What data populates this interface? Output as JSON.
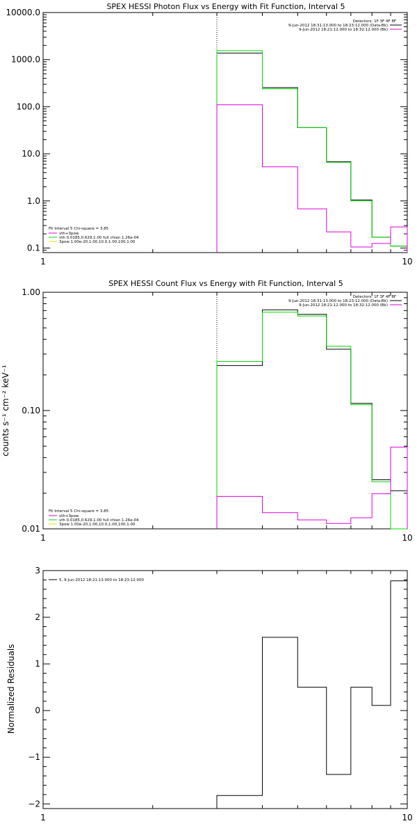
{
  "colors": {
    "background": "#ffffff",
    "axes": "#000000",
    "data": "#000000",
    "model_green": "#00dd00",
    "model_magenta": "#dd00dd"
  },
  "chart_data": [
    {
      "type": "line",
      "title": "SPEX HESSI Photon Flux vs Energy with Fit Function, Interval 5",
      "xlabel": "",
      "ylabel": "",
      "xscale": "log",
      "yscale": "log",
      "xlim": [
        1,
        10
      ],
      "ylim": [
        0.08,
        10000
      ],
      "x_ticks": [
        {
          "v": 1,
          "label": "1"
        },
        {
          "v": 10,
          "label": "10"
        }
      ],
      "y_ticks": [
        {
          "v": 0.1,
          "label": "0.1"
        },
        {
          "v": 1,
          "label": "1.0"
        },
        {
          "v": 10,
          "label": "10.0"
        },
        {
          "v": 100,
          "label": "100.0"
        },
        {
          "v": 1000,
          "label": "1000.0"
        },
        {
          "v": 10000,
          "label": "10000.0"
        }
      ],
      "vline_x": 3,
      "edges": [
        3,
        4,
        5,
        6,
        7,
        8,
        9,
        10
      ],
      "series": [
        {
          "role": "data",
          "color": "#000000",
          "values": [
            1380,
            255,
            36,
            6.8,
            1.05,
            0.17,
            0.11
          ]
        },
        {
          "role": "vth",
          "color": "#00dd00",
          "values": [
            1550,
            240,
            36,
            6.6,
            1.0,
            0.17,
            0.11
          ]
        },
        {
          "role": "bkg",
          "color": "#dd00dd",
          "values": [
            110,
            5.3,
            0.68,
            0.22,
            0.105,
            0.125,
            0.28
          ]
        }
      ],
      "legend_right": {
        "header": "Detectors: 1F 3F 4F 8F",
        "lines": [
          {
            "text": "9-Jun-2012 18:31:13.000 to 18:23:12.000 (Data-Bk)",
            "color": "#000000"
          },
          {
            "text": "9-Jun-2012 18:21:12.000 to 18:32:12.000 (Bk)",
            "color": "#dd00dd"
          }
        ]
      },
      "legend_left": {
        "header": "Fit Interval 5   Chi-square = 3.85",
        "lines": [
          {
            "text": "vth+3pow",
            "color": "#dd00dd"
          },
          {
            "text": "vth 0.0185,0.629,1.00  full chian 1.26e-04",
            "color": "#00dd00"
          },
          {
            "text": "3pow 1.00e-20,1.00,10.0,1.00,100,1.00",
            "color": "#dddd00"
          }
        ]
      }
    },
    {
      "type": "line",
      "title": "SPEX HESSI Count Flux vs Energy with Fit Function, Interval 5",
      "xlabel": "",
      "ylabel": "counts s⁻¹ cm⁻² keV⁻¹",
      "xscale": "log",
      "yscale": "log",
      "xlim": [
        1,
        10
      ],
      "ylim": [
        0.01,
        1
      ],
      "x_ticks": [
        {
          "v": 1,
          "label": "1"
        },
        {
          "v": 10,
          "label": "10"
        }
      ],
      "y_ticks": [
        {
          "v": 0.01,
          "label": "0.01"
        },
        {
          "v": 0.1,
          "label": "0.10"
        },
        {
          "v": 1,
          "label": "1.00"
        }
      ],
      "vline_x": 3,
      "edges": [
        3,
        4,
        5,
        6,
        7,
        8,
        9,
        10
      ],
      "series": [
        {
          "role": "data",
          "color": "#000000",
          "values": [
            0.24,
            0.71,
            0.65,
            0.33,
            0.115,
            0.026,
            0.021
          ]
        },
        {
          "role": "vth",
          "color": "#00dd00",
          "values": [
            0.26,
            0.68,
            0.63,
            0.35,
            0.112,
            0.025,
            0.0088
          ]
        },
        {
          "role": "bkg",
          "color": "#dd00dd",
          "values": [
            0.0188,
            0.0137,
            0.0119,
            0.0111,
            0.0124,
            0.0198,
            0.049
          ]
        }
      ],
      "legend_right": {
        "header": "Detectors: 1F 3F 4F 8F",
        "lines": [
          {
            "text": "9-Jun-2012 18:31:13.000 to 18:23:12.000 (Data-Bk)",
            "color": "#000000"
          },
          {
            "text": "9-Jun-2012 18:21:12.000 to 18:32:12.000 (Bk)",
            "color": "#dd00dd"
          }
        ]
      },
      "legend_left": {
        "header": "Fit Interval 5   Chi-square = 3.85",
        "lines": [
          {
            "text": "vth+3pow",
            "color": "#dd00dd"
          },
          {
            "text": "vth 0.0185,0.629,1.00  full chian 1.26e-04",
            "color": "#00dd00"
          },
          {
            "text": "3pow 1.00e-20,1.00,10.0,1.00,100,1.00",
            "color": "#dddd00"
          }
        ]
      }
    },
    {
      "type": "line",
      "title": "",
      "xlabel": "",
      "ylabel": "Normalized Residuals",
      "xscale": "log",
      "yscale": "linear",
      "xlim": [
        1,
        10
      ],
      "ylim": [
        -2.1,
        3
      ],
      "x_ticks": [
        {
          "v": 1,
          "label": "1"
        },
        {
          "v": 10,
          "label": "10"
        }
      ],
      "y_ticks": [
        {
          "v": -2,
          "label": "−2"
        },
        {
          "v": -1,
          "label": "−1"
        },
        {
          "v": 0,
          "label": "0"
        },
        {
          "v": 1,
          "label": "1"
        },
        {
          "v": 2,
          "label": "2"
        },
        {
          "v": 3,
          "label": "3"
        }
      ],
      "edges": [
        3,
        4,
        5,
        6,
        7,
        8,
        9,
        10
      ],
      "series": [
        {
          "role": "residual",
          "color": "#000000",
          "values": [
            -1.82,
            1.57,
            0.5,
            -1.37,
            0.5,
            0.11,
            2.78
          ]
        }
      ],
      "legend_left": {
        "header": "",
        "lines": [
          {
            "text": "5,  9-Jun-2012 18:21:13.000 to 18:23:12.000",
            "color": "#000000"
          }
        ]
      }
    }
  ]
}
